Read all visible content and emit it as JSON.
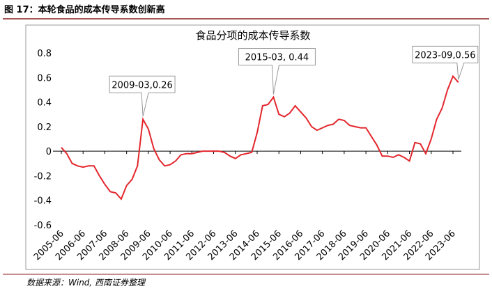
{
  "header": "图 17：本轮食品的成本传导系数创新高",
  "source": "数据来源：Wind, 西南证券整理",
  "chart_data": {
    "type": "line",
    "title": "食品分项的成本传导系数",
    "x": [
      "2005-06",
      "2005-09",
      "2005-12",
      "2006-03",
      "2006-06",
      "2006-09",
      "2006-12",
      "2007-03",
      "2007-06",
      "2007-09",
      "2007-12",
      "2008-03",
      "2008-06",
      "2008-09",
      "2008-12",
      "2009-03",
      "2009-06",
      "2009-09",
      "2009-12",
      "2010-03",
      "2010-06",
      "2010-09",
      "2010-12",
      "2011-03",
      "2011-06",
      "2011-09",
      "2011-12",
      "2012-03",
      "2012-06",
      "2012-09",
      "2012-12",
      "2013-03",
      "2013-06",
      "2013-09",
      "2013-12",
      "2014-03",
      "2014-06",
      "2014-09",
      "2014-12",
      "2015-03",
      "2015-06",
      "2015-09",
      "2015-12",
      "2016-03",
      "2016-06",
      "2016-09",
      "2016-12",
      "2017-03",
      "2017-06",
      "2017-09",
      "2017-12",
      "2018-03",
      "2018-06",
      "2018-09",
      "2018-12",
      "2019-03",
      "2019-06",
      "2019-09",
      "2019-12",
      "2020-03",
      "2020-06",
      "2020-09",
      "2020-12",
      "2021-03",
      "2021-06",
      "2021-09",
      "2021-12",
      "2022-03",
      "2022-06",
      "2022-09",
      "2022-12",
      "2023-03",
      "2023-06",
      "2023-09"
    ],
    "series": [
      {
        "name": "食品分项的成本传导系数",
        "color": "#e3262c",
        "values": [
          0.03,
          -0.02,
          -0.1,
          -0.12,
          -0.13,
          -0.12,
          -0.12,
          -0.2,
          -0.27,
          -0.33,
          -0.34,
          -0.39,
          -0.28,
          -0.23,
          -0.12,
          0.26,
          0.18,
          0.02,
          -0.07,
          -0.12,
          -0.11,
          -0.08,
          -0.03,
          -0.02,
          -0.02,
          -0.01,
          0,
          0,
          0,
          0,
          -0.01,
          -0.04,
          -0.06,
          -0.03,
          -0.02,
          -0.01,
          0.15,
          0.37,
          0.38,
          0.44,
          0.3,
          0.28,
          0.31,
          0.37,
          0.32,
          0.27,
          0.2,
          0.17,
          0.19,
          0.21,
          0.22,
          0.26,
          0.25,
          0.21,
          0.2,
          0.19,
          0.19,
          0.12,
          0.05,
          -0.04,
          -0.04,
          -0.05,
          -0.03,
          -0.05,
          -0.08,
          0.07,
          0.06,
          -0.02,
          0.1,
          0.26,
          0.35,
          0.5,
          0.61,
          0.56
        ]
      }
    ],
    "xticks": [
      "2005-06",
      "2006-06",
      "2007-06",
      "2008-06",
      "2009-06",
      "2010-06",
      "2011-06",
      "2012-06",
      "2013-06",
      "2014-06",
      "2015-06",
      "2016-06",
      "2017-06",
      "2018-06",
      "2019-06",
      "2020-06",
      "2021-06",
      "2022-06",
      "2023-06"
    ],
    "ylim": [
      -0.6,
      0.8
    ],
    "yticks": [
      -0.6,
      -0.4,
      -0.2,
      0,
      0.2,
      0.4,
      0.6,
      0.8
    ],
    "annotations": [
      {
        "label": "2009-03,0.26",
        "x": "2009-03",
        "y": 0.26
      },
      {
        "label": "2015-03, 0.44",
        "x": "2015-03",
        "y": 0.44
      },
      {
        "label": "2023-09,0.56",
        "x": "2023-09",
        "y": 0.56
      }
    ]
  }
}
